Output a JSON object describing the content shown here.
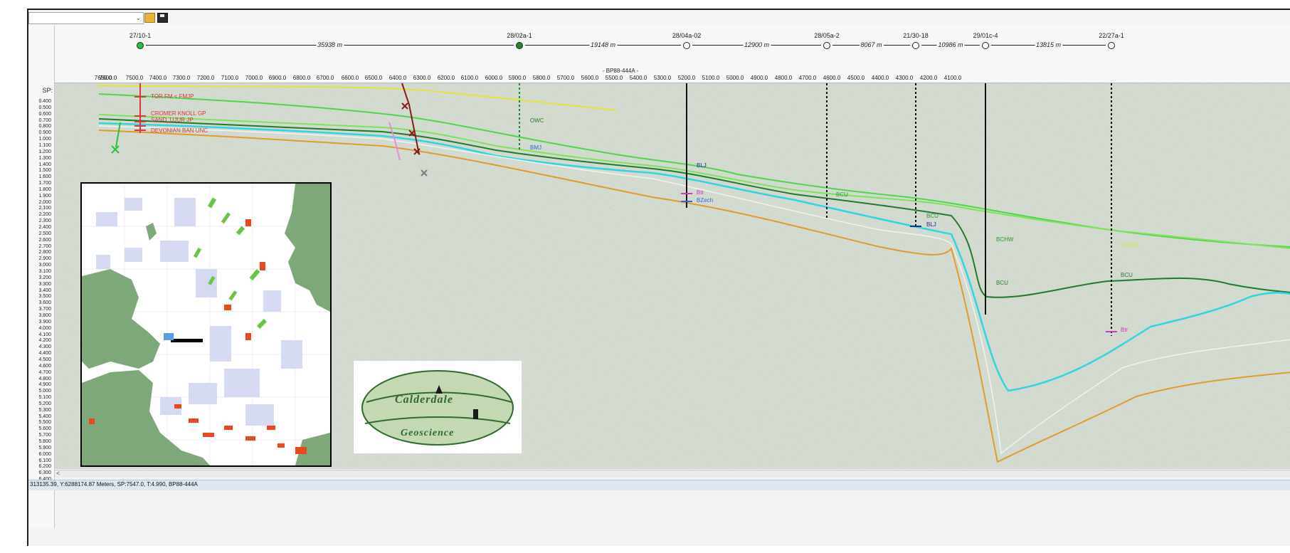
{
  "toolbar": {
    "combo_value": "",
    "combo_arrow": "⌄",
    "open_icon": "folder-open-icon",
    "save_icon": "floppy-disk-icon"
  },
  "ruler": {
    "sp_label": "SP:",
    "line_name": "- BP88-444A -",
    "time_ticks": [
      "0.400",
      "0.500",
      "0.600",
      "0.700",
      "0.800",
      "0.900",
      "1.000",
      "1.100",
      "1.200",
      "1.300",
      "1.400",
      "1.500",
      "1.600",
      "1.700",
      "1.800",
      "1.900",
      "2.000",
      "2.100",
      "2.200",
      "2.300",
      "2.400",
      "2.500",
      "2.600",
      "2.700",
      "2.800",
      "2.900",
      "3.000",
      "3.100",
      "3.200",
      "3.300",
      "3.400",
      "3.500",
      "3.600",
      "3.700",
      "3.800",
      "3.900",
      "4.000",
      "4.100",
      "4.200",
      "4.300",
      "4.400",
      "4.500",
      "4.600",
      "4.700",
      "4.800",
      "4.900",
      "5.000",
      "5.100",
      "5.200",
      "5.300",
      "5.400",
      "5.500",
      "5.600",
      "5.700",
      "5.800",
      "5.900",
      "6.000",
      "6.100",
      "6.200",
      "6.300",
      "6.400"
    ],
    "sp_ticks": [
      "7650.0",
      "7600.0",
      "7500.0",
      "7400.0",
      "7300.0",
      "7200.0",
      "7100.0",
      "7000.0",
      "6900.0",
      "6800.0",
      "6700.0",
      "6600.0",
      "6500.0",
      "6400.0",
      "6300.0",
      "6200.0",
      "6100.0",
      "6000.0",
      "5900.0",
      "5800.0",
      "5700.0",
      "5600.0",
      "5500.0",
      "5400.0",
      "5300.0",
      "5200.0",
      "5100.0",
      "5000.0",
      "4900.0",
      "4800.0",
      "4700.0",
      "4600.0",
      "4500.0",
      "4400.0",
      "4300.0",
      "4200.0",
      "4100.0"
    ]
  },
  "wells": [
    {
      "name": "27/10-1"
    },
    {
      "name": "28/02a-1"
    },
    {
      "name": "28/04a-02"
    },
    {
      "name": "28/05a-2"
    },
    {
      "name": "21/30-18"
    },
    {
      "name": "29/01c-4"
    },
    {
      "name": "22/27a-1"
    }
  ],
  "distances": [
    "35938 m",
    "19148 m",
    "12900 m",
    "8067 m",
    "10986 m",
    "13815 m"
  ],
  "horizon_labels": {
    "tor": "TOR FM < FMJP",
    "cromer": "CROMER KNOLL GP",
    "sand": "SAND_UJUR JP",
    "devonian": "DEVONIAN BAN UNC",
    "owc": "OWC",
    "bmj": "BMJ",
    "blj1": "BLJ",
    "btr1": "Btr",
    "bzech": "BZech",
    "bcu1": "BCU",
    "bcu2": "BCU",
    "blj2": "BLJ",
    "bchw": "BCHW",
    "bcu3": "BCU",
    "tchw": "TCHW",
    "bcu4": "BCU",
    "btr2": "Btr"
  },
  "logo": {
    "line1": "Calderdale",
    "line2": "Geoscience"
  },
  "scroll": {
    "left_arrow": "<"
  },
  "status": {
    "text": "313135.39, Y:6288174.87 Meters,  SP:7547.0,  T:4.990,  BP88-444A"
  },
  "colors": {
    "yellow_horizon": "#e6e23a",
    "green_horizon": "#55e04a",
    "cyan_horizon": "#2fd6e0",
    "orange_horizon": "#e39a2a",
    "dark_green_horizon": "#1f7a2a",
    "well_marker_red": "#d63a3a",
    "land": "#7fa87a",
    "license_blocks": "#d6d9f2",
    "fields_red": "#e64a1e",
    "fields_green": "#6ac44a"
  }
}
